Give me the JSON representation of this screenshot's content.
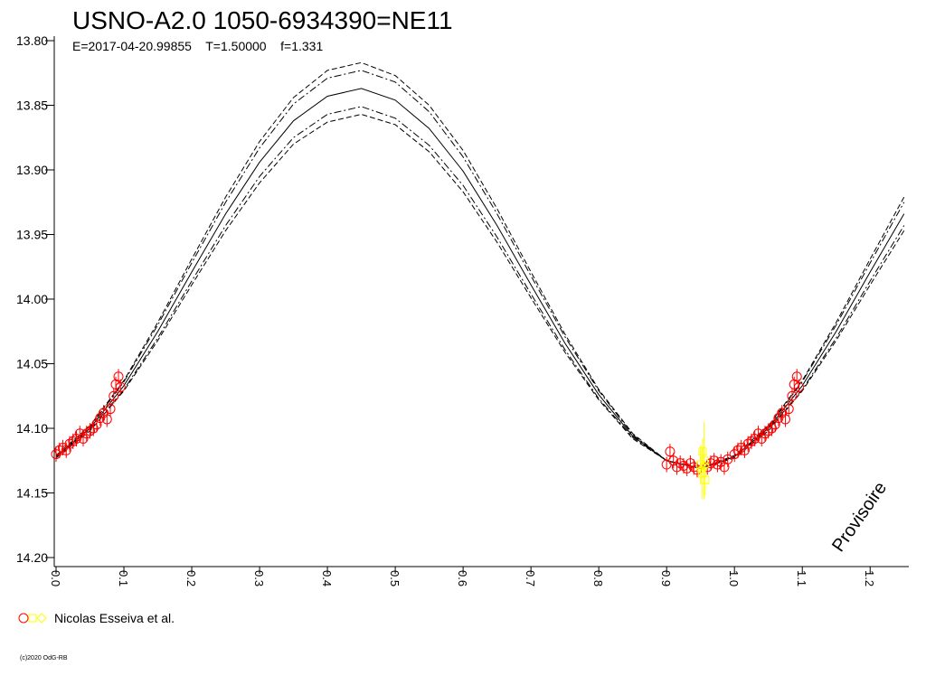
{
  "chart_data": {
    "type": "line",
    "title": "USNO-A2.0 1050-6934390=NE11",
    "subtitle": "E=2017-04-20.99855    T=1.50000    f=1.331",
    "annotation": "Provisoire",
    "footer": "(c)2020 OdG-RB",
    "xlim": [
      0,
      1.257
    ],
    "ylim": [
      14.2,
      13.8
    ],
    "xticks": [
      {
        "value": 0,
        "label": "0.0"
      },
      {
        "value": 0.1,
        "label": "0.1"
      },
      {
        "value": 0.2,
        "label": "0.2"
      },
      {
        "value": 0.3,
        "label": "0.3"
      },
      {
        "value": 0.4,
        "label": "0.4"
      },
      {
        "value": 0.5,
        "label": "0.5"
      },
      {
        "value": 0.6,
        "label": "0.6"
      },
      {
        "value": 0.7,
        "label": "0.7"
      },
      {
        "value": 0.8,
        "label": "0.8"
      },
      {
        "value": 0.9,
        "label": "0.9"
      },
      {
        "value": 1,
        "label": "1.0"
      },
      {
        "value": 1.1,
        "label": "1.1"
      },
      {
        "value": 1.2,
        "label": "1.2"
      }
    ],
    "yticks": [
      {
        "value": 13.8,
        "label": "13.80"
      },
      {
        "value": 13.85,
        "label": "13.85"
      },
      {
        "value": 13.9,
        "label": "13.90"
      },
      {
        "value": 13.95,
        "label": "13.95"
      },
      {
        "value": 14.0,
        "label": "14.00"
      },
      {
        "value": 14.05,
        "label": "14.05"
      },
      {
        "value": 14.1,
        "label": "14.10"
      },
      {
        "value": 14.15,
        "label": "14.15"
      },
      {
        "value": 14.2,
        "label": "14.20"
      }
    ],
    "x": [
      0,
      0.05,
      0.1,
      0.15,
      0.2,
      0.25,
      0.3,
      0.35,
      0.4,
      0.45,
      0.5,
      0.55,
      0.6,
      0.65,
      0.7,
      0.75,
      0.8,
      0.85,
      0.9,
      0.95,
      1,
      1.05,
      1.1,
      1.15,
      1.2,
      1.25
    ],
    "series": [
      {
        "color": "#000000",
        "dash": "none",
        "values": [
          14.122,
          14.1,
          14.067,
          14.025,
          13.979,
          13.934,
          13.894,
          13.862,
          13.843,
          13.837,
          13.846,
          13.868,
          13.901,
          13.943,
          13.989,
          14.034,
          14.074,
          14.106,
          14.125,
          14.131,
          14.122,
          14.1,
          14.067,
          14.025,
          13.979,
          13.934
        ]
      },
      {
        "color": "#000000",
        "dash": "6,3",
        "values": [
          14.121,
          14.098,
          14.063,
          14.018,
          13.969,
          13.921,
          13.878,
          13.844,
          13.823,
          13.817,
          13.827,
          13.85,
          13.885,
          13.93,
          13.979,
          14.027,
          14.07,
          14.104,
          14.125,
          14.131,
          14.121,
          14.098,
          14.063,
          14.018,
          13.969,
          13.921
        ]
      },
      {
        "color": "#000000",
        "dash": "8,3,2,3",
        "values": [
          14.122,
          14.099,
          14.064,
          14.02,
          13.972,
          13.925,
          13.883,
          13.849,
          13.829,
          13.823,
          13.832,
          13.855,
          13.89,
          13.934,
          13.982,
          14.029,
          14.071,
          14.105,
          14.125,
          14.131,
          14.122,
          14.099,
          14.064,
          14.02,
          13.972,
          13.925
        ]
      },
      {
        "color": "#000000",
        "dash": "8,3,2,3",
        "values": [
          14.122,
          14.101,
          14.07,
          14.03,
          13.986,
          13.943,
          13.905,
          13.875,
          13.857,
          13.851,
          13.86,
          13.881,
          13.912,
          13.952,
          13.996,
          14.039,
          14.077,
          14.107,
          14.125,
          14.131,
          14.122,
          14.101,
          14.07,
          14.03,
          13.986,
          13.943
        ]
      },
      {
        "color": "#000000",
        "dash": "6,3",
        "values": [
          14.123,
          14.102,
          14.071,
          14.032,
          13.989,
          13.947,
          13.91,
          13.88,
          13.863,
          13.857,
          13.865,
          13.886,
          13.917,
          13.956,
          13.999,
          14.041,
          14.078,
          14.108,
          14.125,
          14.131,
          14.123,
          14.102,
          14.071,
          14.032,
          13.989,
          13.947
        ]
      }
    ],
    "observations": {
      "name": "Nicolas Esseiva et al.",
      "sets": [
        {
          "marker": "circle",
          "color": "#ff0000",
          "x": [
            0,
            0.005,
            0.01,
            0.015,
            0.02,
            0.025,
            0.03,
            0.035,
            0.04,
            0.045,
            0.05,
            0.055,
            0.06,
            0.065,
            0.07,
            0.075,
            0.08,
            0.085,
            0.088,
            0.092,
            0.095,
            0.9,
            0.905,
            0.91,
            0.915,
            0.92,
            0.925,
            0.93,
            0.935,
            0.94,
            0.945,
            0.96,
            0.965,
            0.97,
            0.975,
            0.98,
            0.985,
            0.99,
            1,
            1.005,
            1.01,
            1.015,
            1.02,
            1.025,
            1.03,
            1.035,
            1.04,
            1.045,
            1.05,
            1.055,
            1.06,
            1.065,
            1.07,
            1.075,
            1.08,
            1.085,
            1.088,
            1.092,
            1.095
          ],
          "values": [
            14.12,
            14.117,
            14.115,
            14.117,
            14.112,
            14.11,
            14.108,
            14.104,
            14.108,
            14.104,
            14.102,
            14.1,
            14.097,
            14.092,
            14.088,
            14.093,
            14.085,
            14.075,
            14.066,
            14.06,
            14.068,
            14.128,
            14.118,
            14.125,
            14.13,
            14.127,
            14.129,
            14.131,
            14.127,
            14.13,
            14.132,
            14.13,
            14.127,
            14.125,
            14.128,
            14.126,
            14.13,
            14.124,
            14.12,
            14.117,
            14.115,
            14.117,
            14.112,
            14.11,
            14.108,
            14.104,
            14.108,
            14.104,
            14.102,
            14.1,
            14.097,
            14.092,
            14.088,
            14.093,
            14.085,
            14.075,
            14.066,
            14.06,
            14.068
          ],
          "errors": [
            0.006,
            0.006,
            0.006,
            0.006,
            0.006,
            0.006,
            0.006,
            0.006,
            0.006,
            0.006,
            0.006,
            0.006,
            0.006,
            0.006,
            0.006,
            0.006,
            0.006,
            0.006,
            0.006,
            0.006,
            0.006,
            0.006,
            0.006,
            0.006,
            0.006,
            0.006,
            0.006,
            0.006,
            0.006,
            0.006,
            0.006,
            0.006,
            0.006,
            0.006,
            0.006,
            0.006,
            0.006,
            0.006,
            0.006,
            0.006,
            0.006,
            0.006,
            0.006,
            0.006,
            0.006,
            0.006,
            0.006,
            0.006,
            0.006,
            0.006,
            0.006,
            0.006,
            0.006,
            0.006,
            0.006,
            0.006,
            0.006,
            0.006,
            0.006
          ]
        },
        {
          "marker": "square",
          "color": "#ffff00",
          "x": [
            0.95,
            0.952,
            0.955,
            0.957,
            0.953
          ],
          "values": [
            14.128,
            14.135,
            14.125,
            14.14,
            14.118
          ],
          "errors": [
            0.015,
            0.02,
            0.03,
            0.012,
            0.01
          ]
        },
        {
          "marker": "diamond",
          "color": "#ffff00",
          "x": [
            0.951,
            0.956
          ],
          "values": [
            14.132,
            14.129
          ]
        }
      ]
    }
  }
}
